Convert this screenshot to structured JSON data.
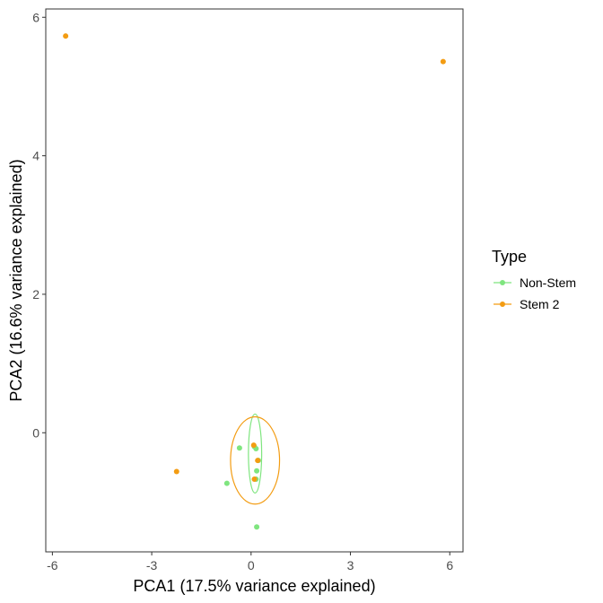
{
  "chart_data": {
    "type": "scatter",
    "title": "",
    "xlabel": "PCA1 (17.5% variance explained)",
    "ylabel": "PCA2 (16.6% variance explained)",
    "xlim": [
      -6.2,
      6.4
    ],
    "ylim": [
      -1.72,
      6.12
    ],
    "x_ticks": [
      -6,
      -3,
      0,
      3,
      6
    ],
    "x_tick_labels": [
      "-6",
      "-3",
      "0",
      "3",
      "6"
    ],
    "y_ticks": [
      0,
      2,
      4,
      6
    ],
    "y_tick_labels": [
      "0",
      "2",
      "4",
      "6"
    ],
    "grid": false,
    "legend": {
      "title": "Type",
      "position": "right"
    },
    "series": [
      {
        "name": "Non-Stem",
        "color": "#7fe57f",
        "points": [
          {
            "x": -0.35,
            "y": -0.22
          },
          {
            "x": -0.73,
            "y": -0.73
          },
          {
            "x": 0.1,
            "y": -0.2
          },
          {
            "x": 0.15,
            "y": -0.23
          },
          {
            "x": 0.22,
            "y": -0.4
          },
          {
            "x": 0.17,
            "y": -0.55
          },
          {
            "x": 0.15,
            "y": -0.67
          },
          {
            "x": 0.17,
            "y": -1.36
          }
        ],
        "ellipse": {
          "cx": 0.12,
          "cy": -0.3,
          "rx": 0.2,
          "ry": 0.57
        }
      },
      {
        "name": "Stem 2",
        "color": "#f39c12",
        "points": [
          {
            "x": -5.6,
            "y": 5.73
          },
          {
            "x": 5.8,
            "y": 5.36
          },
          {
            "x": -2.25,
            "y": -0.56
          },
          {
            "x": 0.08,
            "y": -0.18
          },
          {
            "x": 0.2,
            "y": -0.4
          },
          {
            "x": 0.1,
            "y": -0.67
          }
        ],
        "ellipse": {
          "cx": 0.12,
          "cy": -0.4,
          "rx": 0.74,
          "ry": 0.63
        }
      }
    ]
  }
}
